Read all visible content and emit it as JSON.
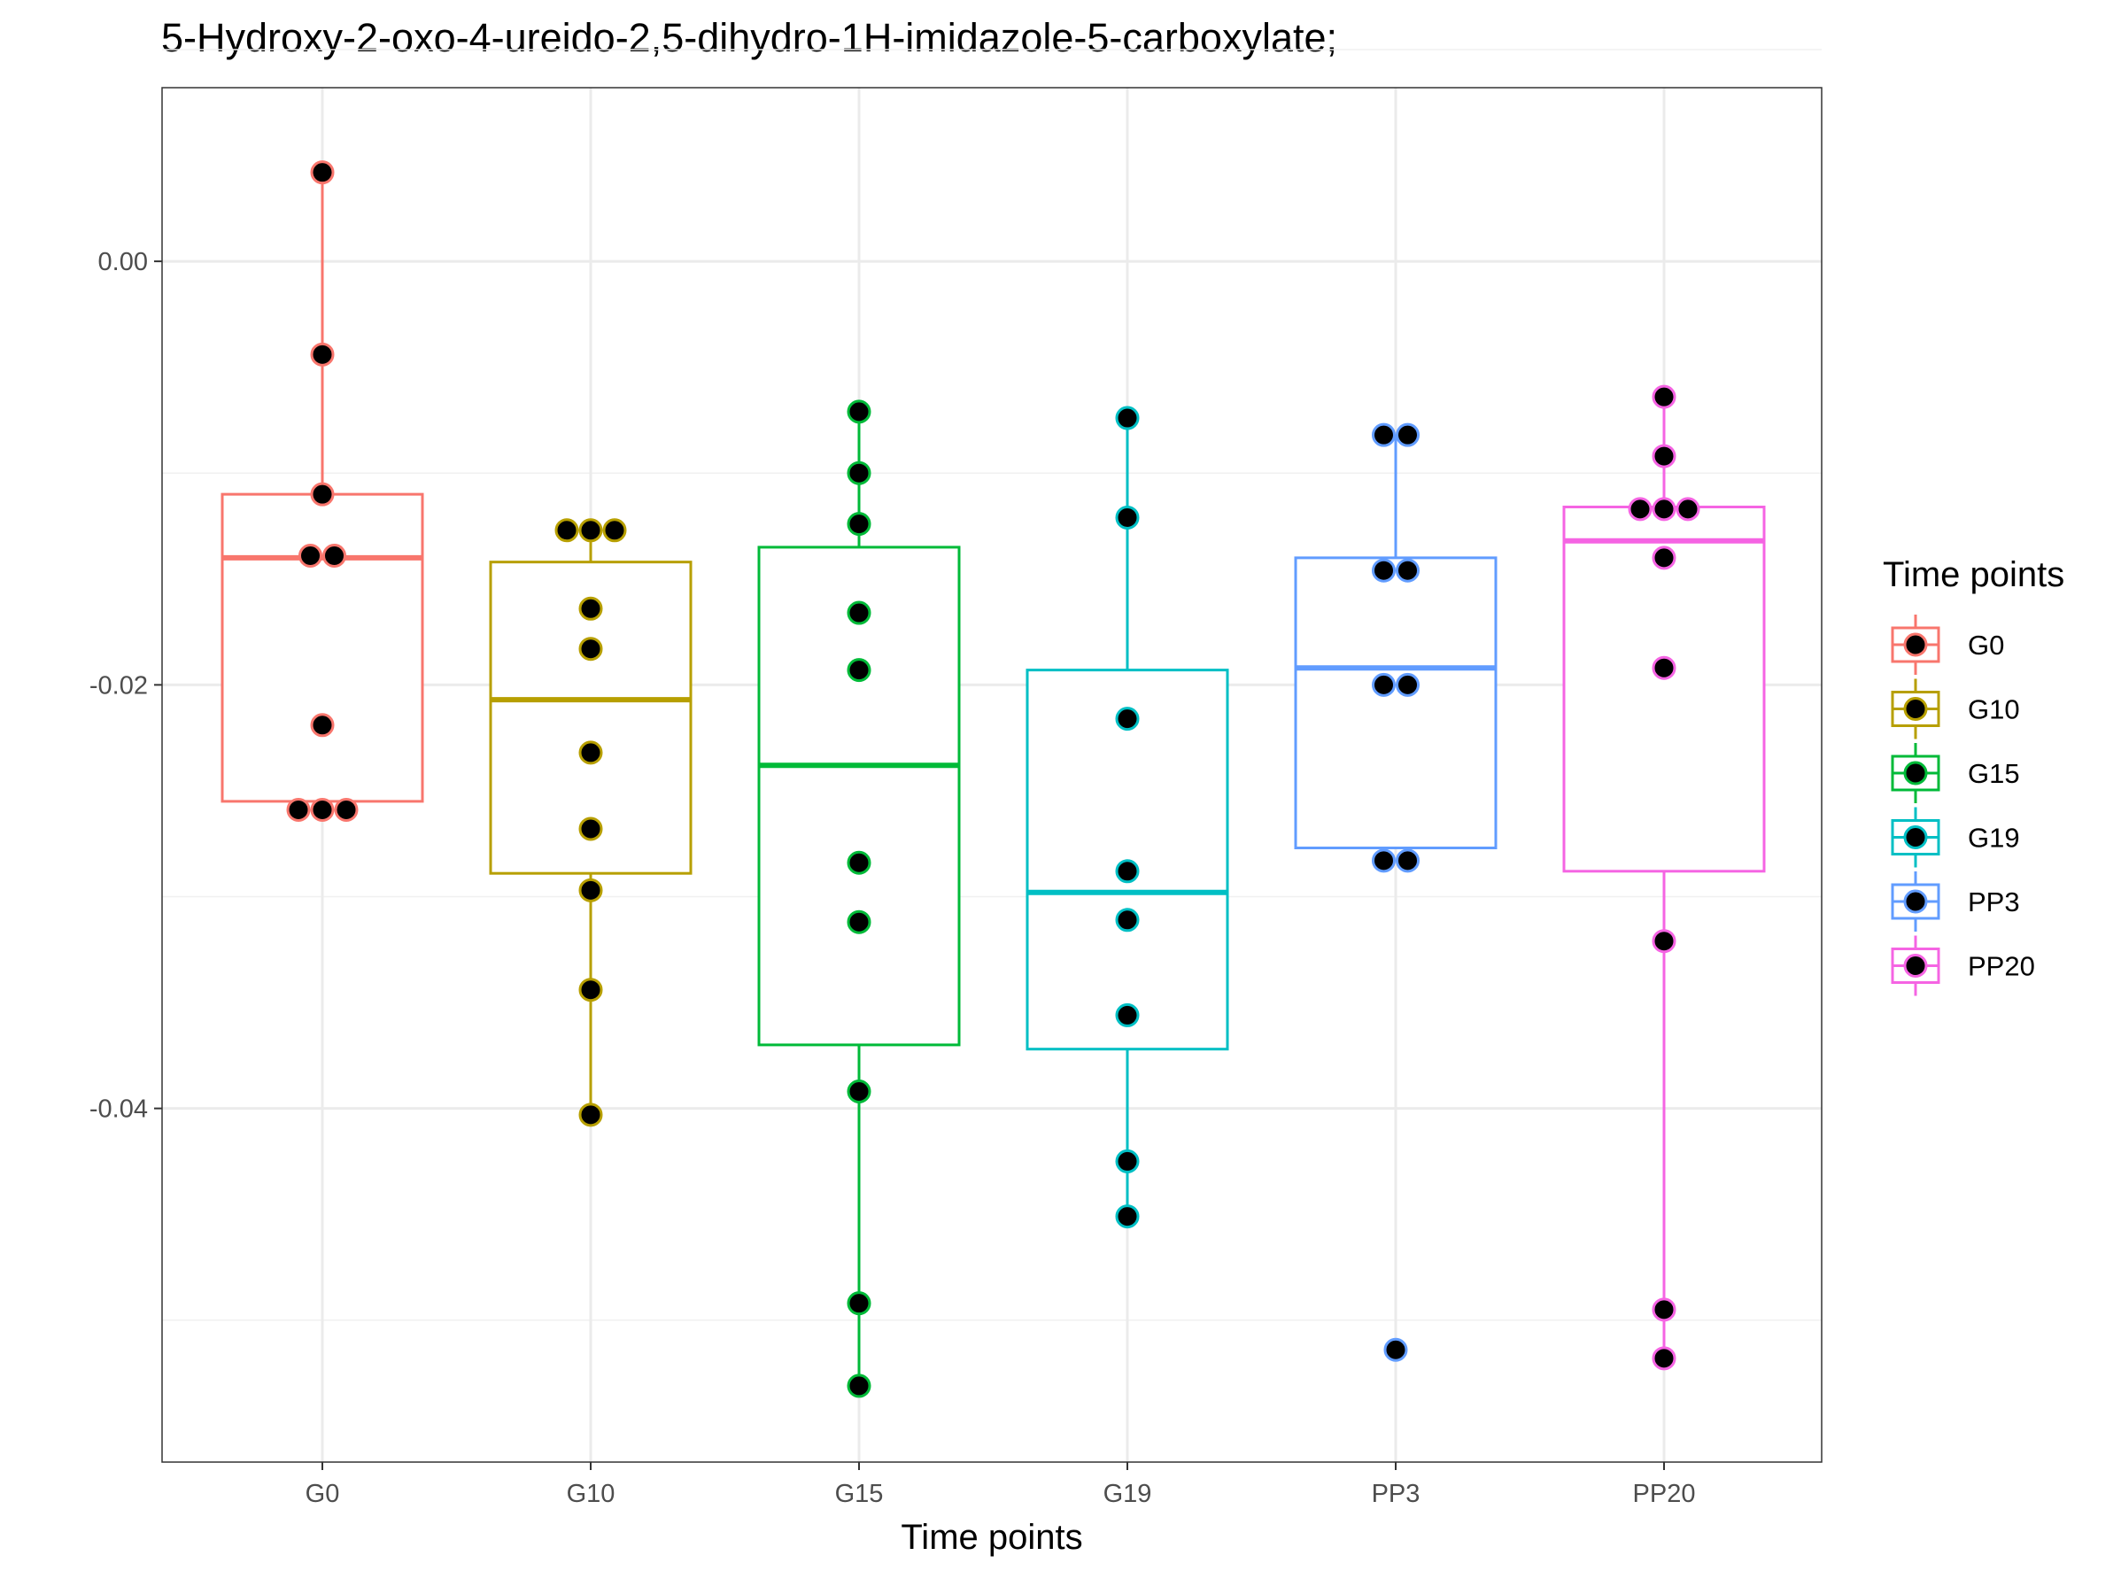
{
  "chart_data": {
    "type": "box",
    "title": "5-Hydroxy-2-oxo-4-ureido-2,5-dihydro-1H-imidazole-5-carboxylate;",
    "xlabel": "Time points",
    "ylabel": "",
    "ylim": [
      -0.0567,
      0.0082
    ],
    "yticks": [
      0.0,
      -0.02,
      -0.04
    ],
    "ytick_labels": [
      "0.00",
      "-0.02",
      "-0.04"
    ],
    "minor_yticks": [
      0.01,
      -0.01,
      -0.03,
      -0.05
    ],
    "grid": true,
    "legend": {
      "title": "Time points",
      "position": "right"
    },
    "categories": [
      "G0",
      "G10",
      "G15",
      "G19",
      "PP3",
      "PP20"
    ],
    "groups": [
      {
        "name": "G0",
        "color": "#F8766D",
        "box": {
          "q1": -0.0255,
          "median": -0.014,
          "q3": -0.011,
          "whisker_low": -0.0259,
          "whisker_high": 0.0042
        },
        "points": [
          0.0042,
          -0.0044,
          -0.011,
          -0.0139,
          -0.0139,
          -0.0219,
          -0.0259,
          -0.0259,
          -0.0259
        ]
      },
      {
        "name": "G10",
        "color": "#B79F00",
        "box": {
          "q1": -0.0289,
          "median": -0.0207,
          "q3": -0.0142,
          "whisker_low": -0.0403,
          "whisker_high": -0.0127
        },
        "points": [
          -0.0127,
          -0.0127,
          -0.0127,
          -0.0164,
          -0.0183,
          -0.0232,
          -0.0268,
          -0.0297,
          -0.0344,
          -0.0403
        ]
      },
      {
        "name": "G15",
        "color": "#00BA38",
        "box": {
          "q1": -0.037,
          "median": -0.0238,
          "q3": -0.0135,
          "whisker_low": -0.0531,
          "whisker_high": -0.0071
        },
        "points": [
          -0.0071,
          -0.01,
          -0.0124,
          -0.0166,
          -0.0193,
          -0.0284,
          -0.0312,
          -0.0392,
          -0.0492,
          -0.0531
        ]
      },
      {
        "name": "G19",
        "color": "#00BFC4",
        "box": {
          "q1": -0.0372,
          "median": -0.0298,
          "q3": -0.0193,
          "whisker_low": -0.0451,
          "whisker_high": -0.0074
        },
        "points": [
          -0.0074,
          -0.0121,
          -0.0216,
          -0.0288,
          -0.0311,
          -0.0356,
          -0.0425,
          -0.0451
        ]
      },
      {
        "name": "PP3",
        "color": "#619CFF",
        "box": {
          "q1": -0.0277,
          "median": -0.0192,
          "q3": -0.014,
          "whisker_low": -0.0277,
          "whisker_high": -0.0082
        },
        "points": [
          -0.0082,
          -0.0082,
          -0.0146,
          -0.0146,
          -0.02,
          -0.02,
          -0.0283,
          -0.0283,
          -0.0514
        ]
      },
      {
        "name": "PP20",
        "color": "#F564E3",
        "box": {
          "q1": -0.0288,
          "median": -0.0132,
          "q3": -0.0116,
          "whisker_low": -0.0518,
          "whisker_high": -0.0064
        },
        "points": [
          -0.0064,
          -0.0092,
          -0.0117,
          -0.0117,
          -0.0117,
          -0.014,
          -0.0192,
          -0.0321,
          -0.0495,
          -0.0518
        ]
      }
    ]
  }
}
